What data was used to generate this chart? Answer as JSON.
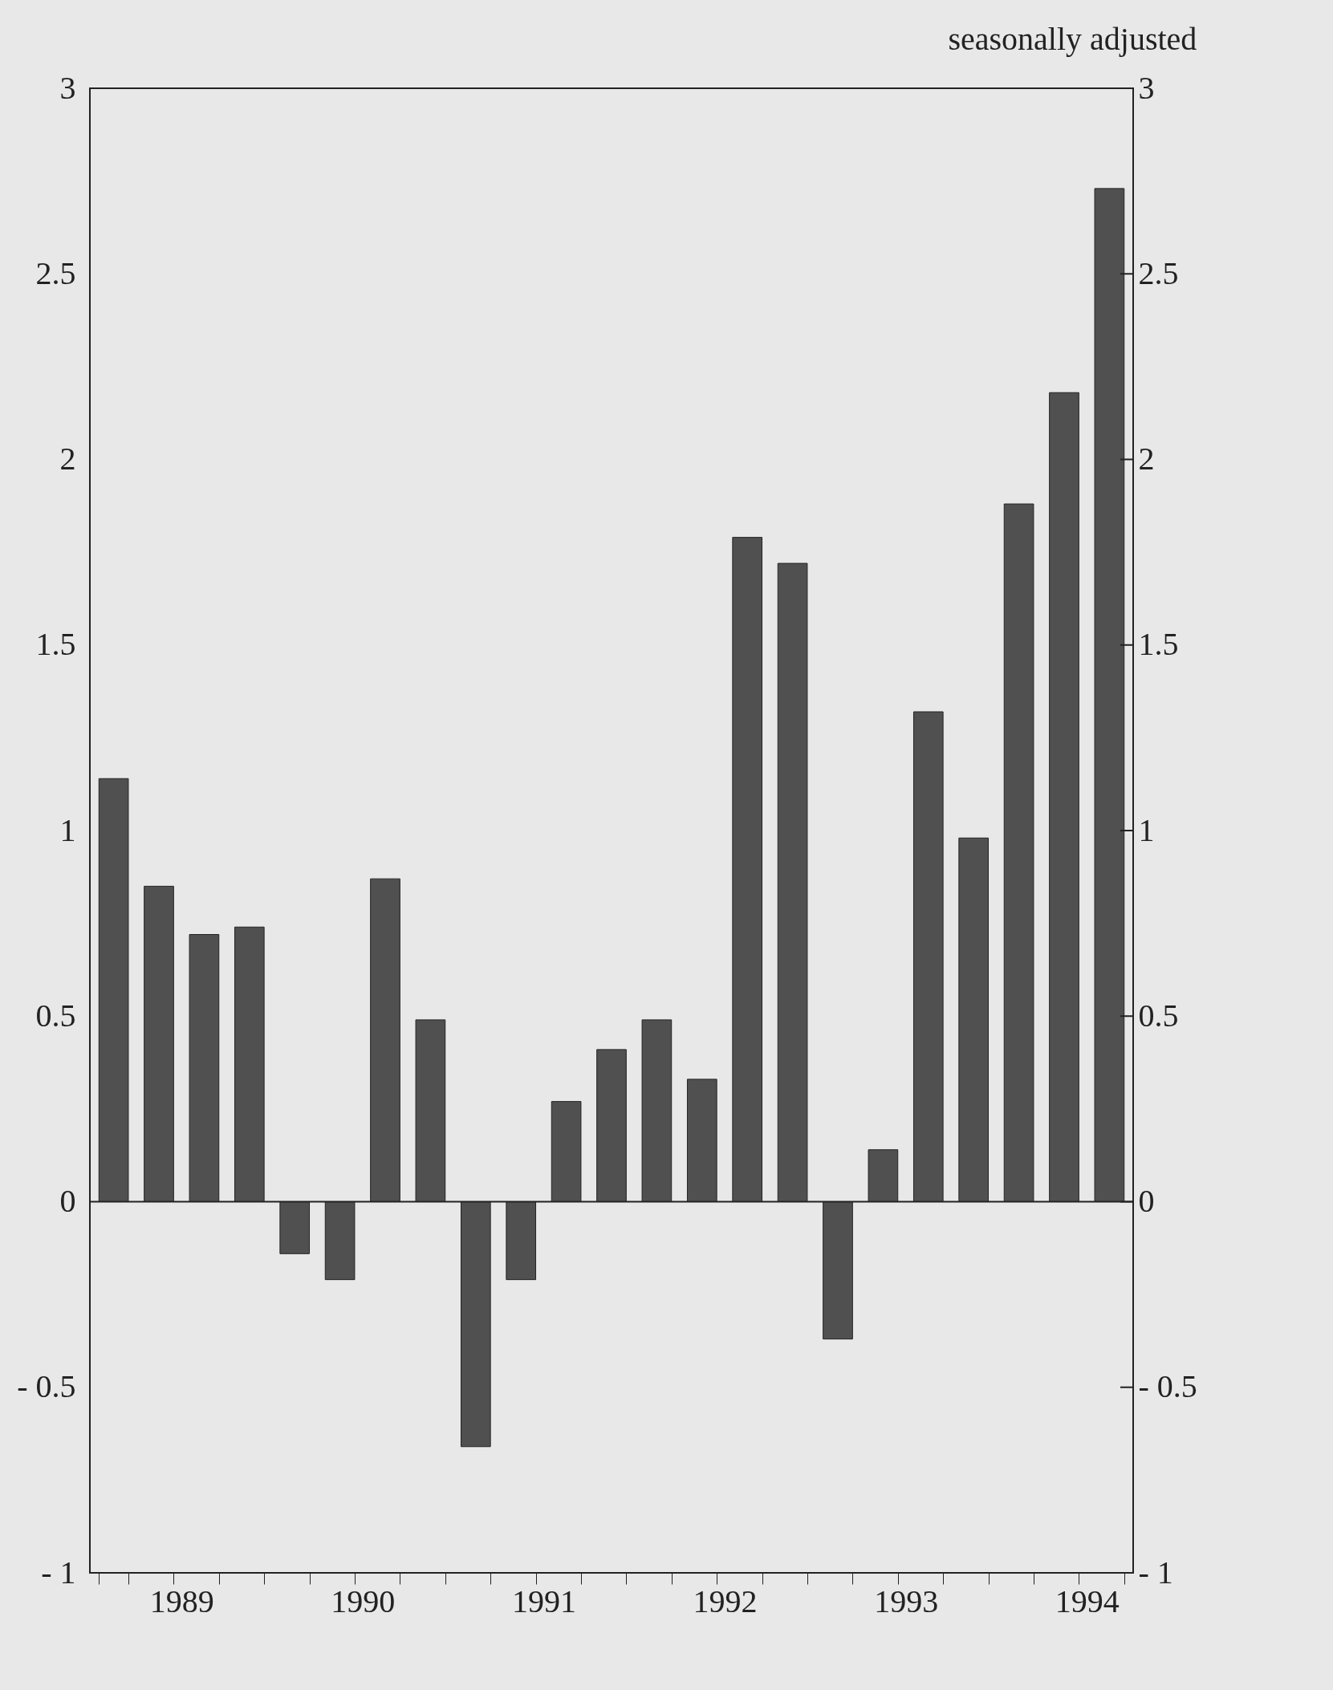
{
  "chart_data": {
    "type": "bar",
    "annotations": [
      "seasonally adjusted"
    ],
    "categories": [
      null,
      "1989",
      null,
      null,
      null,
      "1990",
      null,
      null,
      null,
      "1991",
      null,
      null,
      null,
      "1992",
      null,
      null,
      null,
      "1993",
      null,
      null,
      null,
      "1994",
      null
    ],
    "series": [
      {
        "color": "#505050",
        "values": [
          1.14,
          0.85,
          0.72,
          0.74,
          -0.14,
          -0.21,
          0.87,
          0.49,
          -0.66,
          -0.21,
          0.27,
          0.41,
          0.49,
          0.33,
          1.79,
          1.72,
          -0.37,
          0.14,
          1.32,
          0.98,
          1.88,
          2.18,
          2.73
        ]
      }
    ],
    "ylim": [
      -1,
      3
    ],
    "yticks": [
      -1,
      -0.5,
      0,
      0.5,
      1,
      1.5,
      2,
      2.5,
      3
    ],
    "y2lim": [
      -1,
      3
    ],
    "y2ticks": [
      -1,
      -0.5,
      0,
      0.5,
      1,
      1.5,
      2,
      2.5,
      3
    ],
    "ref_lines": [
      {
        "axis": "y",
        "value": 0
      }
    ],
    "grid": false
  }
}
